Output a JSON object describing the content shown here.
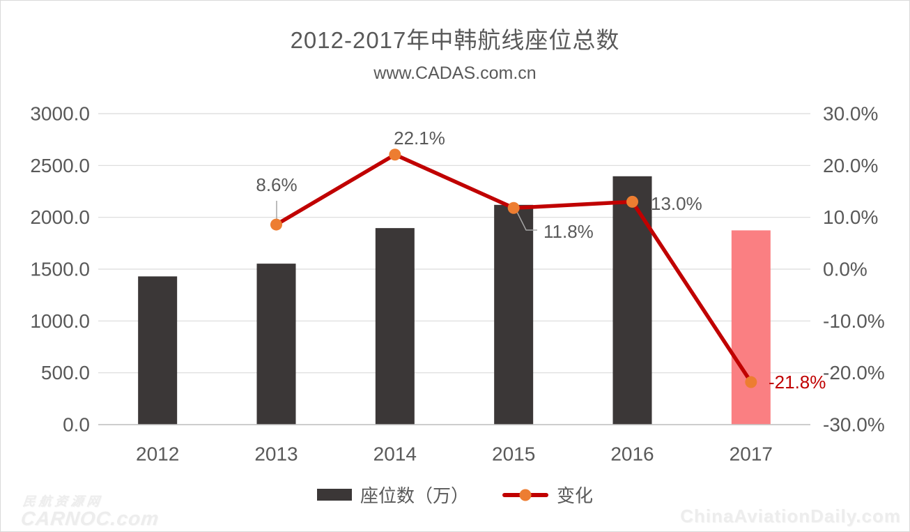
{
  "title": "2012-2017年中韩航线座位总数",
  "subtitle": "www.CADAS.com.cn",
  "colors": {
    "bar": "#3b3737",
    "bar_highlight": "#fa7f82",
    "line": "#c00000",
    "marker": "#ed7d31",
    "axis_text": "#595959",
    "data_label": "#595959",
    "negative_label": "#c00000",
    "gridline": "#d9d9d9",
    "axis_line": "#c6c6c6",
    "leader_line": "#a6a6a6"
  },
  "chart_data": {
    "type": "combo",
    "categories": [
      "2012",
      "2013",
      "2014",
      "2015",
      "2016",
      "2017"
    ],
    "series": [
      {
        "name": "座位数（万）",
        "type": "bar",
        "axis": "left",
        "values": [
          1430,
          1553,
          1896,
          2120,
          2396,
          1874
        ]
      },
      {
        "name": "变化",
        "type": "line",
        "axis": "right",
        "values": [
          null,
          8.6,
          22.1,
          11.8,
          13.0,
          -21.8
        ]
      }
    ],
    "data_labels": [
      "",
      "8.6%",
      "22.1%",
      "11.8%",
      "13.0%",
      "-21.8%"
    ],
    "highlight_category": "2017",
    "left_axis": {
      "min": 0,
      "max": 3000,
      "ticks": [
        "3000.0",
        "2500.0",
        "2000.0",
        "1500.0",
        "1000.0",
        "500.0",
        "0.0"
      ]
    },
    "right_axis": {
      "min": -30,
      "max": 30,
      "ticks": [
        "30.0%",
        "20.0%",
        "10.0%",
        "0.0%",
        "-10.0%",
        "-20.0%",
        "-30.0%"
      ]
    },
    "grid": "horizontal",
    "legend_position": "bottom"
  },
  "legend": {
    "items": [
      {
        "label": "座位数（万）",
        "swatch": "bar"
      },
      {
        "label": "变化",
        "swatch": "line"
      }
    ]
  },
  "watermarks": {
    "left_line1": "民航资源网",
    "left_line2": "CARNOC.com",
    "right": "ChinaAviationDaily.com"
  }
}
